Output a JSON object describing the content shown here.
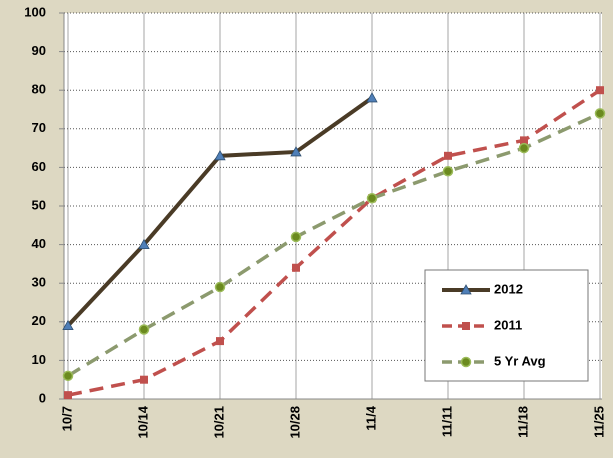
{
  "chart_data": {
    "type": "line",
    "categories": [
      "10/7",
      "10/14",
      "10/21",
      "10/28",
      "11/4",
      "11/11",
      "11/18",
      "11/25"
    ],
    "series": [
      {
        "name": "2012",
        "color": "#4a3b26",
        "marker": "triangle",
        "marker_color": "#4f7fb8",
        "dashed": false,
        "values": [
          19,
          40,
          63,
          64,
          78,
          null,
          null,
          null
        ]
      },
      {
        "name": "2011",
        "color": "#c0504d",
        "marker": "square",
        "marker_color": "#c0504d",
        "dashed": true,
        "values": [
          1,
          5,
          15,
          34,
          52,
          63,
          67,
          80
        ]
      },
      {
        "name": "5 Yr Avg",
        "color": "#8c9a6e",
        "marker": "circle",
        "marker_color": "#6b8a1f",
        "dashed": true,
        "values": [
          6,
          18,
          29,
          42,
          52,
          59,
          65,
          74
        ]
      }
    ],
    "ylim": [
      0,
      100
    ],
    "yticks": [
      0,
      10,
      20,
      30,
      40,
      50,
      60,
      70,
      80,
      90,
      100
    ],
    "grid": true,
    "legend": "lower right"
  }
}
